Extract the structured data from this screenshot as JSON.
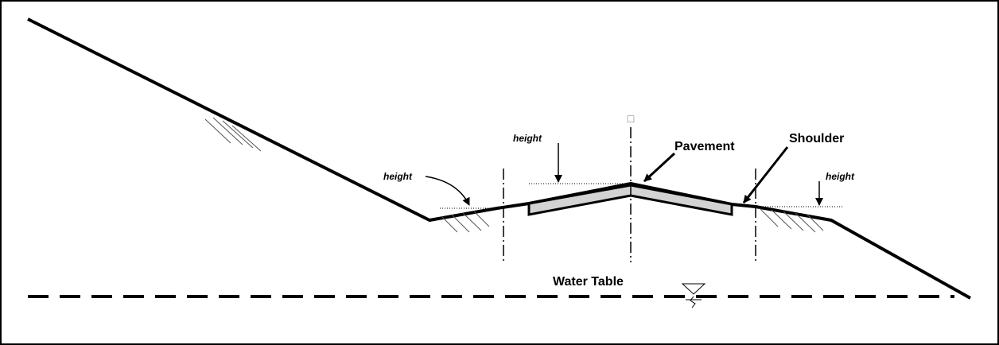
{
  "labels": {
    "pavement": "Pavement",
    "shoulder": "Shoulder",
    "water_table": "Water Table",
    "height_left": "height",
    "height_center": "height",
    "height_right": "height",
    "centerline_symbol": "□"
  }
}
